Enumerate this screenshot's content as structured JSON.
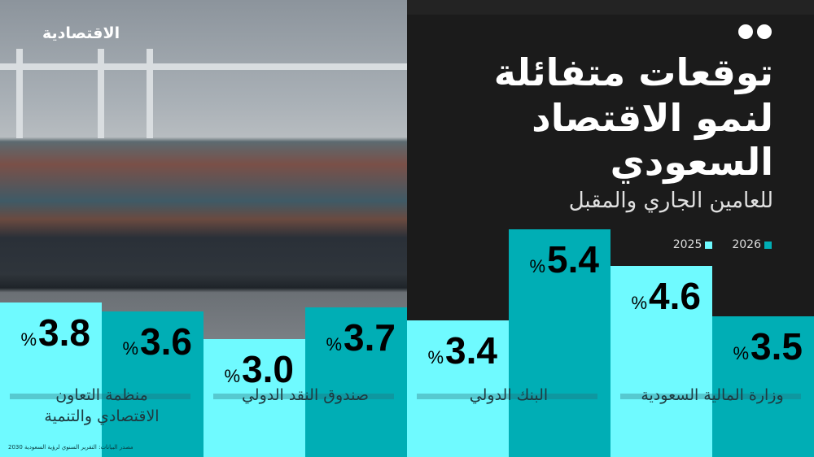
{
  "logo": "الاقتصادية",
  "title_lines": [
    "توقعات متفائلة",
    "لنمو الاقتصاد",
    "السعودي"
  ],
  "subtitle": "للعامين الجاري والمقبل",
  "source": "مصدر البيانات: التقرير السنوي لرؤية السعودية 2030",
  "chart_data": {
    "type": "bar",
    "categories": [
      "منظمة التعاون الاقتصادي والتنمية",
      "صندوق النقد الدولي",
      "البنك الدولي",
      "وزارة المالية السعودية"
    ],
    "category_lines": [
      [
        "منظمة التعاون",
        "الاقتصادي والتنمية"
      ],
      [
        "صندوق النقد الدولي"
      ],
      [
        "البنك الدولي"
      ],
      [
        "وزارة المالية السعودية"
      ]
    ],
    "series": [
      {
        "name": "2025",
        "color": "#6ffaff",
        "values": [
          3.8,
          3.0,
          3.4,
          4.6
        ]
      },
      {
        "name": "2026",
        "color": "#00aeb5",
        "values": [
          3.6,
          3.7,
          5.4,
          3.5
        ]
      }
    ],
    "value_suffix": "%",
    "legend_position": "top-right",
    "grid": false
  }
}
